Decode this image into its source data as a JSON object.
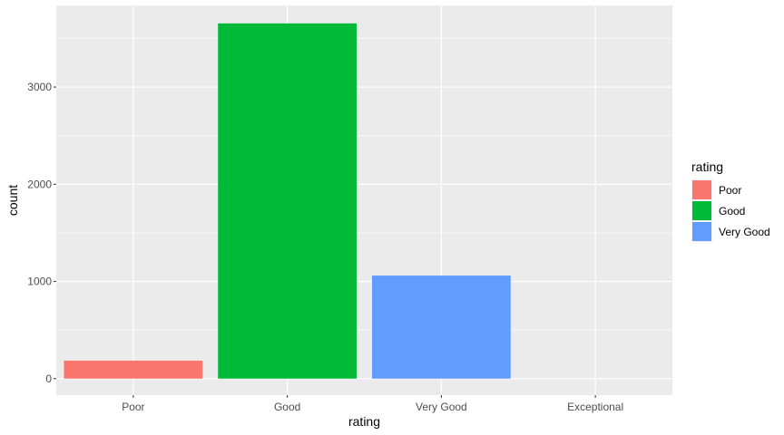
{
  "chart_data": {
    "type": "bar",
    "xlabel": "rating",
    "ylabel": "count",
    "categories": [
      "Poor",
      "Good",
      "Very Good",
      "Exceptional"
    ],
    "values": [
      185,
      3655,
      1060,
      0
    ],
    "ylim": [
      -170,
      3840
    ],
    "yticks": [
      0,
      1000,
      2000,
      3000
    ],
    "ytick_labels": [
      "0",
      "1000",
      "2000",
      "3000"
    ],
    "grid": true,
    "panel_background": "#ebebeb",
    "grid_color": "#ffffff",
    "tick_color": "#333333",
    "legend": {
      "title": "rating",
      "position": "right",
      "items": [
        {
          "label": "Poor",
          "color": "#F8766D"
        },
        {
          "label": "Good",
          "color": "#00BA38"
        },
        {
          "label": "Very Good",
          "color": "#619CFF"
        }
      ]
    },
    "bar_colors": [
      "#F8766D",
      "#00BA38",
      "#619CFF",
      "#C77CFF"
    ]
  }
}
